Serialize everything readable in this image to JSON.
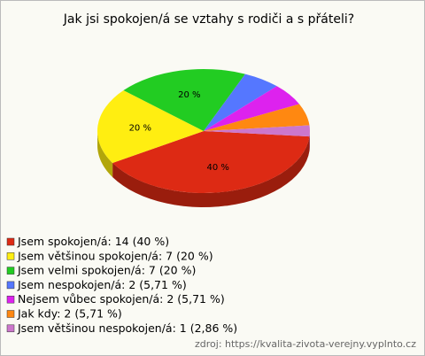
{
  "chart_data": {
    "type": "pie3d",
    "title": "Jak jsi spokojen/á se vztahy s rodiči a s přáteli?",
    "categories": [
      "Jsem spokojen/á",
      "Jsem většinou spokojen/á",
      "Jsem velmi spokojen/á",
      "Jsem nespokojen/á",
      "Nejsem vůbec spokojen/á",
      "Jak kdy",
      "Jsem většinou nespokojen/á"
    ],
    "values": [
      40,
      20,
      20,
      5.71,
      5.71,
      5.71,
      2.86
    ],
    "value_labels": [
      "40 %",
      "20 %",
      "20 %",
      null,
      null,
      null,
      null
    ],
    "legend_labels": [
      "Jsem spokojen/á: 14 (40 %)",
      "Jsem většinou spokojen/á: 7 (20 %)",
      "Jsem velmi spokojen/á: 7 (20 %)",
      "Jsem nespokojen/á: 2 (5,71 %)",
      "Nejsem vůbec spokojen/á: 2 (5,71 %)",
      "Jak kdy: 2 (5,71 %)",
      "Jsem většinou nespokojen/á: 1 (2,86 %)"
    ],
    "colors": [
      "#dd2a14",
      "#ffee11",
      "#22cc22",
      "#5577ff",
      "#dd22ee",
      "#ff8811",
      "#cc77cc"
    ],
    "source": "zdroj: https://kvalita-zivota-verejny.vyplnto.cz"
  }
}
